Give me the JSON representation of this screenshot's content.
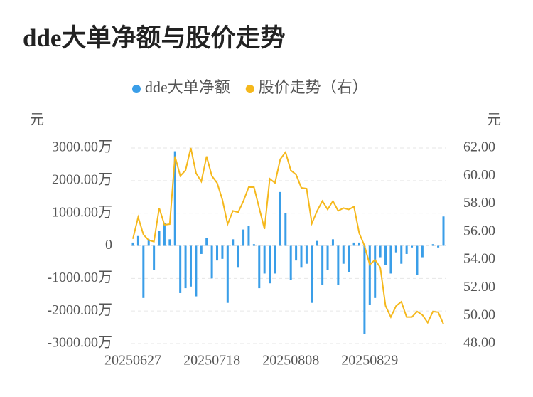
{
  "chart_data": {
    "type": "bar-line",
    "title": "dde大单净额与股价走势",
    "y_label": "元",
    "y2_label": "元",
    "categories": [
      "20250627",
      null,
      null,
      null,
      null,
      null,
      null,
      null,
      null,
      null,
      null,
      null,
      null,
      null,
      null,
      "20250718",
      null,
      null,
      null,
      null,
      null,
      null,
      null,
      null,
      null,
      null,
      null,
      null,
      null,
      null,
      "20250808",
      null,
      null,
      null,
      null,
      null,
      null,
      null,
      null,
      null,
      null,
      null,
      null,
      null,
      null,
      "20250829",
      null,
      null,
      null,
      null,
      null,
      null,
      null,
      null,
      null,
      null,
      null,
      null,
      null,
      null
    ],
    "series": [
      {
        "name": "dde大单净额",
        "type": "bar",
        "color": "#3a9ee8",
        "axis": "y",
        "values": [
          1000000,
          3000000,
          -16000000,
          2000000,
          -7500000,
          4500000,
          7000000,
          2000000,
          29000000,
          -14500000,
          -13000000,
          -12500000,
          -15500000,
          -2500000,
          2500000,
          -10000000,
          -4500000,
          -4000000,
          -17500000,
          2000000,
          -6500000,
          5000000,
          6000000,
          500000,
          -13000000,
          -8500000,
          -11500000,
          -8500000,
          16500000,
          10000000,
          -10500000,
          -4500000,
          -6500000,
          -5500000,
          -17500000,
          1500000,
          -12000000,
          -7500000,
          2000000,
          -12000000,
          -5500000,
          -8000000,
          1000000,
          1000000,
          -27000000,
          -18000000,
          -16000000,
          -3500000,
          -6000000,
          -8500000,
          -2000000,
          -5500000,
          -2500000,
          -500000,
          -9000000,
          -3500000,
          0,
          500000,
          -500000,
          9000000
        ]
      },
      {
        "name": "股价走势（右）",
        "type": "line",
        "color": "#f5b81c",
        "axis": "y2",
        "values": [
          55.5,
          57.05,
          55.8,
          55.4,
          55.3,
          57.7,
          56.5,
          56.55,
          61.4,
          60.0,
          60.4,
          62.0,
          60.2,
          59.6,
          61.4,
          60.0,
          59.5,
          58.3,
          56.55,
          57.5,
          57.4,
          58.2,
          59.2,
          59.2,
          57.7,
          56.2,
          59.8,
          59.5,
          61.2,
          61.7,
          60.4,
          60.1,
          59.15,
          59.1,
          56.6,
          57.5,
          58.2,
          57.6,
          58.2,
          57.5,
          57.7,
          57.6,
          57.8,
          55.9,
          55.0,
          53.65,
          54.0,
          53.45,
          50.7,
          49.9,
          50.7,
          51.0,
          49.9,
          49.9,
          50.3,
          50.05,
          49.5,
          50.3,
          50.25,
          49.4
        ]
      }
    ],
    "ylim": [
      -30000000,
      30000000
    ],
    "yticks": [
      {
        "value": 30000000,
        "label": "3000.00万"
      },
      {
        "value": 20000000,
        "label": "2000.00万"
      },
      {
        "value": 10000000,
        "label": "1000.00万"
      },
      0,
      {
        "value": -10000000,
        "label": "-1000.00万"
      },
      {
        "value": -20000000,
        "label": "-2000.00万"
      },
      {
        "value": -30000000,
        "label": "-3000.00万"
      }
    ],
    "y2lim": [
      48,
      62
    ],
    "y2ticks": [
      {
        "value": 62,
        "label": "62.00"
      },
      {
        "value": 60,
        "label": "60.00"
      },
      {
        "value": 58,
        "label": "58.00"
      },
      {
        "value": 56,
        "label": "56.00"
      },
      {
        "value": 54,
        "label": "54.00"
      },
      {
        "value": 52,
        "label": "52.00"
      },
      {
        "value": 50,
        "label": "50.00"
      },
      {
        "value": 48,
        "label": "48.00"
      }
    ],
    "grid": true,
    "legend": "top"
  }
}
